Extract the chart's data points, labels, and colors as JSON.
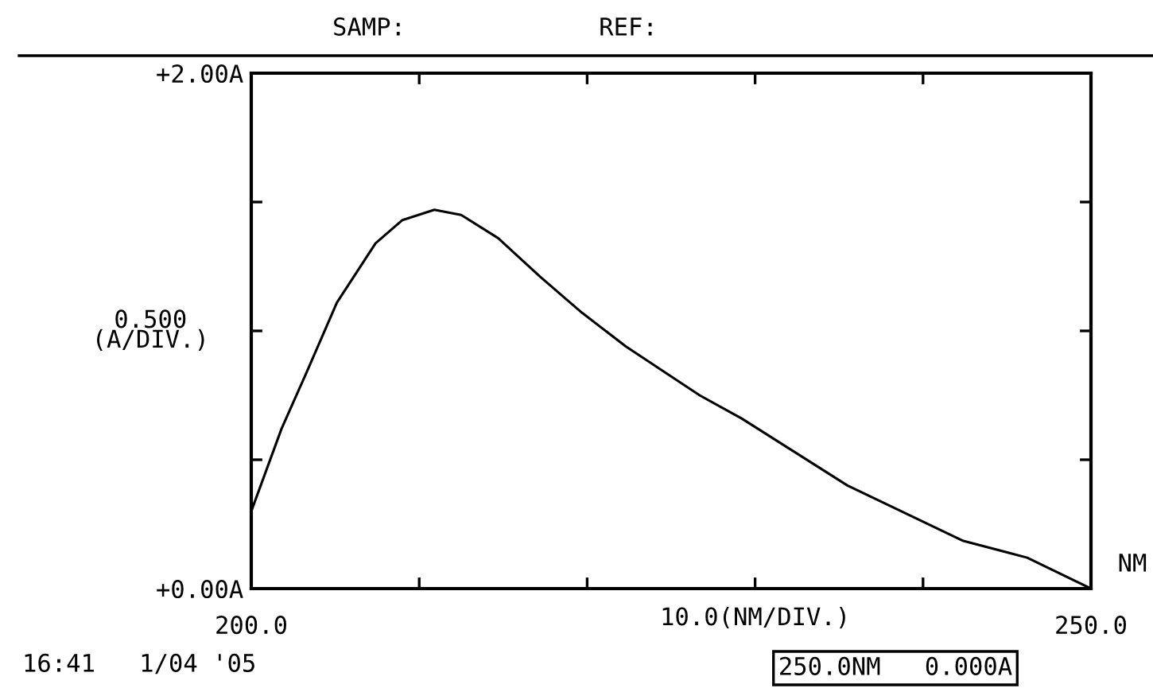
{
  "chart_data": {
    "type": "line",
    "xlabel": "10.0(NM/DIV.)",
    "ylabel": "0.500\n(A/DIV.)",
    "x": [
      200.0,
      201.8,
      203.3,
      205.1,
      207.4,
      209.0,
      210.9,
      212.5,
      214.7,
      217.2,
      219.7,
      222.3,
      226.7,
      229.2,
      235.5,
      242.4,
      246.2,
      250.0
    ],
    "series": [
      {
        "color": "#000000",
        "values": [
          0.3,
          0.62,
          0.84,
          1.11,
          1.34,
          1.43,
          1.47,
          1.45,
          1.36,
          1.21,
          1.07,
          0.94,
          0.75,
          0.66,
          0.4,
          0.185,
          0.12,
          0.0
        ]
      }
    ],
    "xlim": [
      200,
      250
    ],
    "ylim": [
      0,
      2
    ],
    "xticks": [
      {
        "value": 200,
        "label": "200.0"
      },
      {
        "value": 210,
        "label": null
      },
      {
        "value": 220,
        "label": null
      },
      {
        "value": 230,
        "label": null
      },
      {
        "value": 240,
        "label": null
      },
      {
        "value": 250,
        "label": "250.0"
      }
    ],
    "yticks": [
      {
        "value": 0,
        "label": "+0.00A"
      },
      {
        "value": 0.5,
        "label": null
      },
      {
        "value": 1.0,
        "label": null
      },
      {
        "value": 1.5,
        "label": null
      },
      {
        "value": 2,
        "label": "+2.00A"
      }
    ],
    "grid": false,
    "legend": false,
    "marker": "none",
    "line_style": "solid",
    "annotations": [
      "SAMP:",
      "REF:",
      "NM",
      "16:41   1/04 '05",
      "250.0NM   0.000A"
    ]
  }
}
